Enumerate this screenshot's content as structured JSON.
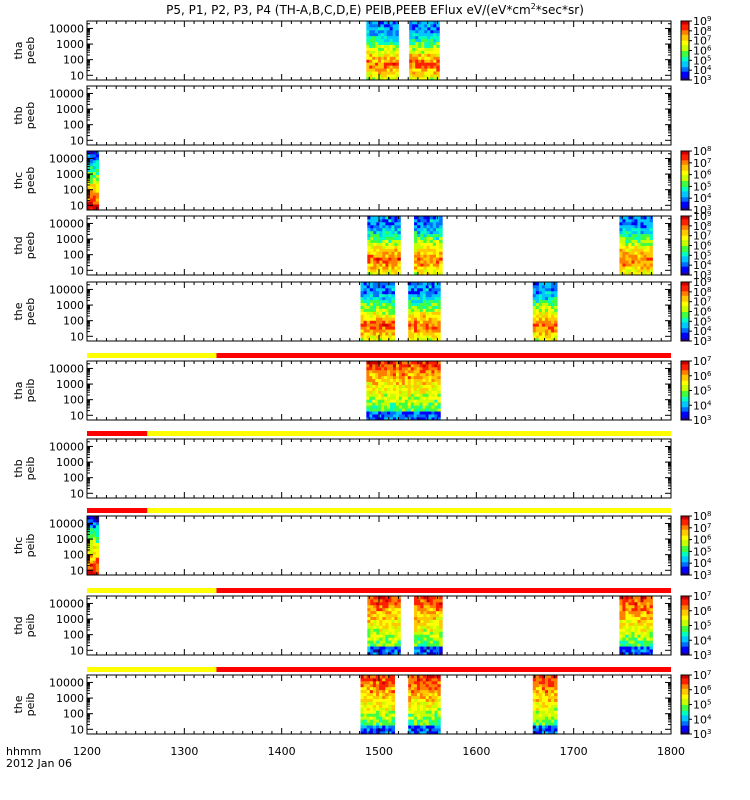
{
  "title": "P5, P1, P2, P3, P4 (TH-A,B,C,D,E) PEIB,PEEB EFlux eV/(eV*cm",
  "title_sup": "2",
  "title_end": "*sec*sr)",
  "footer": {
    "time_label": "hhmm",
    "date_label": "2012 Jan 06"
  },
  "colors": {
    "yellow": "#ffff00",
    "red": "#ff0000",
    "white": "#ffffff",
    "colormap": [
      "#ffffff",
      "#000000",
      "#20008c",
      "#0000ff",
      "#0070ff",
      "#00c8ff",
      "#00ffc0",
      "#40ff40",
      "#c8ff00",
      "#ffff00",
      "#ffc800",
      "#ff8000",
      "#ff2000",
      "#d00000"
    ]
  },
  "chart_data": {
    "type": "heatmap",
    "x_ticks": [
      1200,
      1300,
      1400,
      1500,
      1600,
      1700,
      1800
    ],
    "xlim": [
      1200,
      1800
    ],
    "x_units": "hhmm",
    "y_scale": "log",
    "ylim": [
      5,
      30000
    ],
    "y_tick_labels": [
      "10",
      "100",
      "1000",
      "10000"
    ],
    "panels": [
      {
        "ylabel_1": "tha",
        "ylabel_2": "peeb",
        "ytick_labels": [
          "10",
          "100",
          "1000",
          "10000"
        ],
        "cbar_labels": [
          "10",
          "10",
          "10",
          "10",
          "10",
          "10",
          "10"
        ],
        "cbar_exps": [
          "3",
          "4",
          "5",
          "6",
          "7",
          "8",
          "9"
        ],
        "segments": [
          [
            1487,
            1520
          ],
          [
            1531,
            1562
          ]
        ],
        "profile": "electron",
        "mode_bar": []
      },
      {
        "ylabel_1": "thb",
        "ylabel_2": "peeb",
        "ytick_labels": [
          "10",
          "100",
          "1000",
          "10000"
        ],
        "cbar_labels": [],
        "cbar_exps": [],
        "segments": [],
        "profile": "none",
        "mode_bar": []
      },
      {
        "ylabel_1": "thc",
        "ylabel_2": "peeb",
        "ytick_labels": [
          "10",
          "100",
          "1000",
          "10000"
        ],
        "cbar_labels": [
          "10",
          "10",
          "10",
          "10",
          "10",
          "10"
        ],
        "cbar_exps": [
          "3",
          "4",
          "5",
          "6",
          "7",
          "8"
        ],
        "segments": [
          [
            1200,
            1212
          ]
        ],
        "profile": "edge",
        "mode_bar": []
      },
      {
        "ylabel_1": "thd",
        "ylabel_2": "peeb",
        "ytick_labels": [
          "10",
          "100",
          "1000",
          "10000"
        ],
        "cbar_labels": [
          "10",
          "10",
          "10",
          "10",
          "10",
          "10",
          "10"
        ],
        "cbar_exps": [
          "3",
          "4",
          "5",
          "6",
          "7",
          "8",
          "9"
        ],
        "segments": [
          [
            1488,
            1522
          ],
          [
            1536,
            1565
          ],
          [
            1747,
            1781
          ]
        ],
        "profile": "electron",
        "mode_bar": []
      },
      {
        "ylabel_1": "the",
        "ylabel_2": "peeb",
        "ytick_labels": [
          "10",
          "100",
          "1000",
          "10000"
        ],
        "cbar_labels": [
          "10",
          "10",
          "10",
          "10",
          "10",
          "10",
          "10"
        ],
        "cbar_exps": [
          "3",
          "4",
          "5",
          "6",
          "7",
          "8",
          "9"
        ],
        "segments": [
          [
            1481,
            1516
          ],
          [
            1530,
            1563
          ],
          [
            1658,
            1683
          ]
        ],
        "profile": "electron",
        "mode_bar": []
      },
      {
        "ylabel_1": "tha",
        "ylabel_2": "peib",
        "ytick_labels": [
          "10",
          "100",
          "1000",
          "10000"
        ],
        "cbar_labels": [
          "10",
          "10",
          "10",
          "10",
          "10"
        ],
        "cbar_exps": [
          "3",
          "4",
          "5",
          "6",
          "7"
        ],
        "segments": [
          [
            1487,
            1563
          ]
        ],
        "profile": "ion",
        "mode_bar": [
          [
            1200,
            1333,
            "yellow"
          ],
          [
            1333,
            1800,
            "red"
          ]
        ]
      },
      {
        "ylabel_1": "thb",
        "ylabel_2": "peib",
        "ytick_labels": [
          "10",
          "100",
          "1000",
          "10000"
        ],
        "cbar_labels": [],
        "cbar_exps": [],
        "segments": [],
        "profile": "none",
        "mode_bar": [
          [
            1200,
            1262,
            "red"
          ],
          [
            1262,
            1800,
            "yellow"
          ]
        ]
      },
      {
        "ylabel_1": "thc",
        "ylabel_2": "peib",
        "ytick_labels": [
          "10",
          "100",
          "1000",
          "10000"
        ],
        "cbar_labels": [
          "10",
          "10",
          "10",
          "10",
          "10",
          "10"
        ],
        "cbar_exps": [
          "3",
          "4",
          "5",
          "6",
          "7",
          "8"
        ],
        "segments": [
          [
            1200,
            1212
          ]
        ],
        "profile": "edge",
        "mode_bar": [
          [
            1200,
            1262,
            "red"
          ],
          [
            1262,
            1800,
            "yellow"
          ]
        ]
      },
      {
        "ylabel_1": "thd",
        "ylabel_2": "peib",
        "ytick_labels": [
          "10",
          "100",
          "1000",
          "10000"
        ],
        "cbar_labels": [
          "10",
          "10",
          "10",
          "10",
          "10"
        ],
        "cbar_exps": [
          "3",
          "4",
          "5",
          "6",
          "7"
        ],
        "segments": [
          [
            1488,
            1522
          ],
          [
            1536,
            1565
          ],
          [
            1747,
            1781
          ]
        ],
        "profile": "ion",
        "mode_bar": [
          [
            1200,
            1333,
            "yellow"
          ],
          [
            1333,
            1800,
            "red"
          ]
        ]
      },
      {
        "ylabel_1": "the",
        "ylabel_2": "peib",
        "ytick_labels": [
          "10",
          "100",
          "1000",
          "10000"
        ],
        "cbar_labels": [
          "10",
          "10",
          "10",
          "10",
          "10"
        ],
        "cbar_exps": [
          "3",
          "4",
          "5",
          "6",
          "7"
        ],
        "segments": [
          [
            1481,
            1516
          ],
          [
            1530,
            1563
          ],
          [
            1658,
            1683
          ]
        ],
        "profile": "ion",
        "mode_bar": [
          [
            1200,
            1333,
            "yellow"
          ],
          [
            1333,
            1800,
            "red"
          ]
        ]
      }
    ]
  }
}
